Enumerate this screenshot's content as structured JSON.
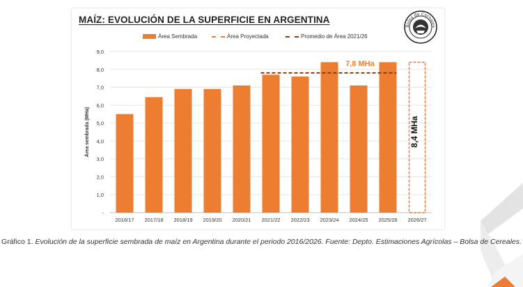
{
  "header": {
    "title": "MAÍZ: EVOLUCIÓN DE LA SUPERFICIE EN ARGENTINA"
  },
  "logo": {
    "text": "Bolsa de Cereales"
  },
  "legend": {
    "sembrada": "Área Sembrada",
    "proyectada": "Área Proyectada",
    "promedio": "Promedio de Área 2021/26"
  },
  "colors": {
    "bar": "#ed7d31",
    "avg_line": "#843c0c",
    "avg_label": "#ed7d31"
  },
  "annotations": {
    "avg_label": "7,8 MHa",
    "projected_label": "8,4  MHa"
  },
  "caption": {
    "prefix": "Gráfico 1. ",
    "italic_text": "Evolución de la superficie sembrada de maíz en Argentina durante el periodo 2016/2026. Fuente: Depto. Estimaciones Agrícolas – Bolsa de Cereales."
  },
  "chart_data": {
    "type": "bar",
    "ylabel": "Área sembrada (MHa)",
    "ylim": [
      0,
      9
    ],
    "yticks": [
      "-",
      "1,0",
      "2,0",
      "3,0",
      "4,0",
      "5,0",
      "6,0",
      "7,0",
      "8,0",
      "9,0"
    ],
    "categories": [
      "2016/17",
      "2017/18",
      "2018/19",
      "2019/20",
      "2020/21",
      "2021/22",
      "2022/23",
      "2023/24",
      "2024/25",
      "2025/26",
      "2026/27"
    ],
    "series": [
      {
        "name": "Área Sembrada",
        "values": [
          5.5,
          6.45,
          6.9,
          6.9,
          7.1,
          7.7,
          7.6,
          8.4,
          7.1,
          8.4,
          null
        ]
      },
      {
        "name": "Área Proyectada",
        "values": [
          null,
          null,
          null,
          null,
          null,
          null,
          null,
          null,
          null,
          null,
          8.4
        ]
      }
    ],
    "average": {
      "name": "Promedio de Área 2021/26",
      "value": 7.8,
      "from": "2021/22",
      "to": "2025/26"
    },
    "grid": true
  }
}
